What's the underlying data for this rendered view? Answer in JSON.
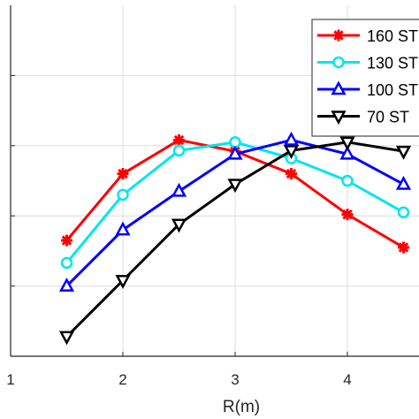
{
  "chart_data": {
    "type": "line",
    "xlabel": "R(m)",
    "ylabel": "",
    "title": "",
    "xlim": [
      1,
      4.6
    ],
    "ylim": [
      0,
      5
    ],
    "xticks": [
      "1",
      "2",
      "3",
      "4"
    ],
    "grid": true,
    "legend_position": "top-right",
    "series": [
      {
        "name": "160 ST",
        "color": "#ff0000",
        "marker": "star",
        "x": [
          1.5,
          2.0,
          2.5,
          3.0,
          3.5,
          4.0,
          4.5
        ],
        "y": [
          1.65,
          2.6,
          3.08,
          2.92,
          2.6,
          2.02,
          1.55
        ]
      },
      {
        "name": "130 ST",
        "color": "#00e5ee",
        "marker": "circle",
        "x": [
          1.5,
          2.0,
          2.5,
          3.0,
          3.5,
          4.0,
          4.5
        ],
        "y": [
          1.33,
          2.3,
          2.93,
          3.05,
          2.82,
          2.5,
          2.05
        ]
      },
      {
        "name": "100 ST",
        "color": "#0000ff",
        "marker": "triangle-up",
        "x": [
          1.5,
          2.0,
          2.5,
          3.0,
          3.5,
          4.0,
          4.5
        ],
        "y": [
          1.0,
          1.8,
          2.35,
          2.88,
          3.08,
          2.88,
          2.45
        ]
      },
      {
        "name": "70 ST",
        "color": "#000000",
        "marker": "triangle-down",
        "x": [
          1.5,
          2.0,
          2.5,
          3.0,
          3.5,
          4.0,
          4.5
        ],
        "y": [
          0.28,
          1.08,
          1.88,
          2.45,
          2.93,
          3.05,
          2.92
        ]
      }
    ]
  }
}
